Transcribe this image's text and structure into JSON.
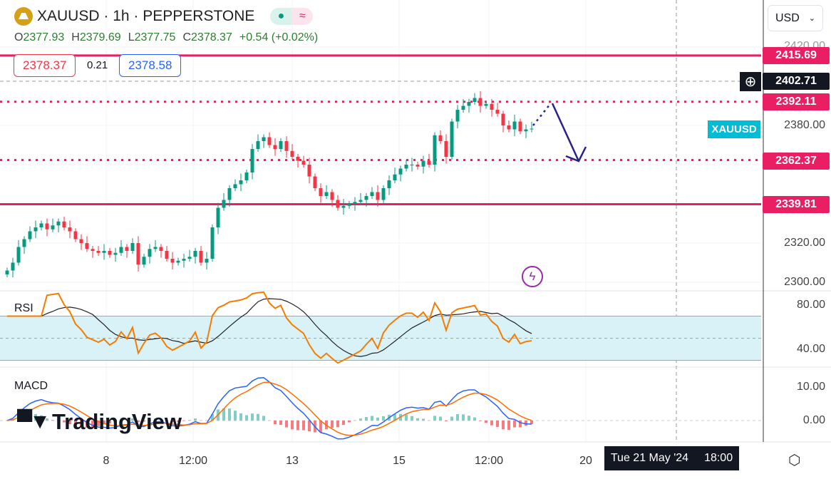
{
  "header": {
    "symbol": "XAUUSD",
    "interval": "1h",
    "exchange": "PEPPERSTONE",
    "sep": "·",
    "market_open_color": "#089981",
    "delay_icon": "≈"
  },
  "ohlc": {
    "o_label": "O",
    "o": "2377.93",
    "h_label": "H",
    "h": "2379.69",
    "l_label": "L",
    "l": "2377.75",
    "c_label": "C",
    "c": "2378.37",
    "change": "+0.54 (+0.02%)"
  },
  "trade": {
    "sell": "2378.37",
    "spread": "0.21",
    "buy": "2378.58"
  },
  "currency": "USD",
  "price_axis": {
    "ticks": [
      "2420.00",
      "2380.00",
      "2320.00",
      "2300.00"
    ]
  },
  "levels": [
    {
      "value": "2415.69",
      "style": "solid"
    },
    {
      "value": "2392.11",
      "style": "dotted"
    },
    {
      "value": "2362.37",
      "style": "dotted"
    },
    {
      "value": "2339.81",
      "style": "solid"
    }
  ],
  "crosshair": {
    "price": "2402.71",
    "time": "Tue 21 May '24",
    "hour": "18:00"
  },
  "symbol_tag": "XAUUSD",
  "rsi": {
    "label": "RSI",
    "ticks": [
      "80.00",
      "40.00"
    ]
  },
  "macd": {
    "label": "MACD",
    "ticks": [
      "10.00",
      "0.00"
    ]
  },
  "time_axis": [
    "8",
    "12:00",
    "13",
    "15",
    "12:00",
    "20"
  ],
  "watermark": "TradingView",
  "colors": {
    "up": "#089981",
    "down": "#f23645",
    "level": "#e91e63",
    "rsi": "#f57c00",
    "macd": "#2962ff",
    "signal": "#ff6d00",
    "arrow": "#2a1f8f"
  },
  "chart_data": {
    "type": "candlestick",
    "ylim": [
      2300,
      2420
    ],
    "closes": [
      2306,
      2310,
      2318,
      2322,
      2326,
      2328,
      2330,
      2327,
      2329,
      2331,
      2328,
      2326,
      2322,
      2320,
      2317,
      2316,
      2315,
      2316,
      2314,
      2315,
      2318,
      2316,
      2320,
      2309,
      2313,
      2317,
      2318,
      2316,
      2312,
      2310,
      2311,
      2312,
      2313,
      2316,
      2310,
      2312,
      2328,
      2338,
      2342,
      2348,
      2350,
      2352,
      2356,
      2368,
      2372,
      2374,
      2370,
      2368,
      2372,
      2367,
      2364,
      2362,
      2360,
      2354,
      2348,
      2344,
      2346,
      2342,
      2338,
      2339,
      2340,
      2341,
      2342,
      2344,
      2346,
      2342,
      2348,
      2352,
      2355,
      2358,
      2360,
      2360,
      2359,
      2362,
      2360,
      2375,
      2372,
      2364,
      2382,
      2388,
      2390,
      2392,
      2394,
      2390,
      2391,
      2388,
      2386,
      2380,
      2378,
      2382,
      2377,
      2378,
      2378.37
    ]
  }
}
